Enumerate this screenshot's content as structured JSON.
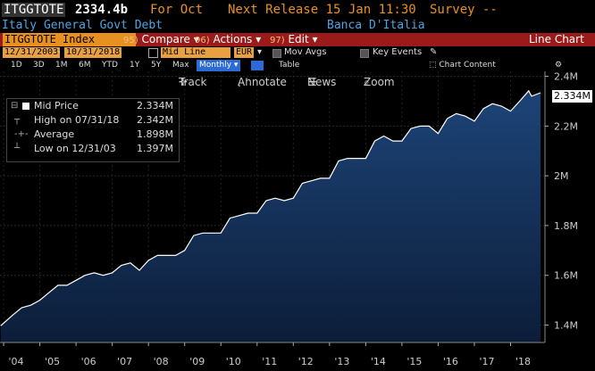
{
  "header": {
    "ticker": "ITGGTOTE",
    "value": "2334.4b",
    "for_label": "For Oct",
    "next_release": "Next Release 15 Jan 11:30",
    "survey": "Survey --",
    "description": "Italy General Govt Debt",
    "source": "Banca D'Italia"
  },
  "toolbar": {
    "security": "ITGGTOTE Index",
    "compare_num": "95)",
    "compare": "Compare",
    "actions_num": "96)",
    "actions": "Actions",
    "edit_num": "97)",
    "edit": "Edit",
    "chart_type": "Line Chart"
  },
  "controls": {
    "start_date": "12/31/2003",
    "end_date": "10/31/2018",
    "line_type": "Mid Line",
    "currency": "EUR",
    "mov_avgs": "Mov Avgs",
    "key_events": "Key Events",
    "chart_content": "Chart Content"
  },
  "periods": [
    "1D",
    "3D",
    "1M",
    "6M",
    "YTD",
    "1Y",
    "5Y",
    "Max",
    "Monthly",
    "Table"
  ],
  "chart_tools": {
    "track": "Track",
    "annotate": "Annotate",
    "news": "News",
    "zoom": "Zoom"
  },
  "legend": {
    "mid_label": "Mid Price",
    "mid_value": "2.334M",
    "high_label": "High on 07/31/18",
    "high_value": "2.342M",
    "avg_label": "Average",
    "avg_value": "1.898M",
    "low_label": "Low on 12/31/03",
    "low_value": "1.397M"
  },
  "last_value_label": "2.334M",
  "colors": {
    "accent": "#e89020",
    "bar": "#9b1a1a",
    "line": "#ffffff",
    "area_top": "#1a3a66",
    "area_bottom": "#0a1a33",
    "highlight": "#2c6bd6"
  },
  "chart_data": {
    "type": "area",
    "y_unit": "M",
    "ylim": [
      1.33,
      2.42
    ],
    "yticks": [
      "1.4M",
      "1.6M",
      "1.8M",
      "2M",
      "2.2M",
      "2.4M"
    ],
    "ytick_values": [
      1.4,
      1.6,
      1.8,
      2.0,
      2.2,
      2.4
    ],
    "xticks": [
      "'04",
      "'05",
      "'06",
      "'07",
      "'08",
      "'09",
      "'10",
      "'11",
      "'12",
      "'13",
      "'14",
      "'15",
      "'16",
      "'17",
      "'18"
    ],
    "xtick_values": [
      2004,
      2005,
      2006,
      2007,
      2008,
      2009,
      2010,
      2011,
      2012,
      2013,
      2014,
      2015,
      2016,
      2017,
      2018
    ],
    "xlim": [
      2003.9,
      2018.95
    ],
    "x": [
      2003.92,
      2004.25,
      2004.5,
      2004.75,
      2005.0,
      2005.25,
      2005.5,
      2005.75,
      2006.0,
      2006.25,
      2006.5,
      2006.75,
      2007.0,
      2007.25,
      2007.5,
      2007.75,
      2008.0,
      2008.25,
      2008.5,
      2008.75,
      2009.0,
      2009.25,
      2009.5,
      2009.75,
      2010.0,
      2010.25,
      2010.5,
      2010.75,
      2011.0,
      2011.25,
      2011.5,
      2011.75,
      2012.0,
      2012.25,
      2012.5,
      2012.75,
      2013.0,
      2013.25,
      2013.5,
      2013.75,
      2014.0,
      2014.25,
      2014.5,
      2014.75,
      2015.0,
      2015.25,
      2015.5,
      2015.75,
      2016.0,
      2016.25,
      2016.5,
      2016.75,
      2017.0,
      2017.25,
      2017.5,
      2017.75,
      2018.0,
      2018.25,
      2018.5,
      2018.58,
      2018.83
    ],
    "y": [
      1.397,
      1.44,
      1.47,
      1.48,
      1.5,
      1.53,
      1.56,
      1.56,
      1.58,
      1.6,
      1.61,
      1.6,
      1.61,
      1.64,
      1.65,
      1.62,
      1.66,
      1.68,
      1.68,
      1.68,
      1.7,
      1.76,
      1.77,
      1.77,
      1.77,
      1.83,
      1.84,
      1.85,
      1.85,
      1.9,
      1.91,
      1.9,
      1.91,
      1.97,
      1.98,
      1.99,
      1.99,
      2.06,
      2.07,
      2.07,
      2.07,
      2.14,
      2.16,
      2.14,
      2.14,
      2.19,
      2.2,
      2.2,
      2.17,
      2.23,
      2.25,
      2.24,
      2.22,
      2.27,
      2.29,
      2.28,
      2.26,
      2.3,
      2.342,
      2.32,
      2.334
    ],
    "last_value": 2.334
  }
}
